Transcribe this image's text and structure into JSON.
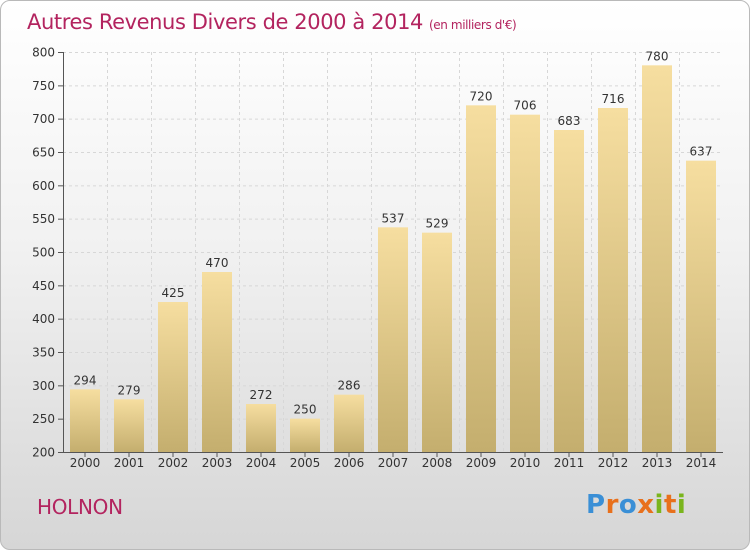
{
  "chart_data": {
    "type": "bar",
    "title": "Autres Revenus Divers de 2000 à 2014",
    "subtitle": "(en milliers d'€)",
    "categories": [
      "2000",
      "2001",
      "2002",
      "2003",
      "2004",
      "2005",
      "2006",
      "2007",
      "2008",
      "2009",
      "2010",
      "2011",
      "2012",
      "2013",
      "2014"
    ],
    "values": [
      294,
      279,
      425,
      470,
      272,
      250,
      286,
      537,
      529,
      720,
      706,
      683,
      716,
      780,
      637
    ],
    "data_labels": [
      "294",
      "279",
      "425",
      "470",
      "272",
      "250",
      "286",
      "537",
      "529",
      "720",
      "706",
      "683",
      "716",
      "780",
      "637"
    ],
    "ylim": [
      200,
      800
    ],
    "yticks": [
      200,
      250,
      300,
      350,
      400,
      450,
      500,
      550,
      600,
      650,
      700,
      750,
      800
    ],
    "ytick_labels": [
      "200",
      "250",
      "300",
      "350",
      "400",
      "450",
      "500",
      "550",
      "600",
      "650",
      "700",
      "750",
      "800"
    ],
    "xlabel": "",
    "ylabel": "",
    "grid": true,
    "colors": {
      "bar_top": "#f6dea0",
      "bar_bottom": "#c4ae6e",
      "title": "#b3245f"
    }
  },
  "footer": {
    "commune": "HOLNON",
    "brand": [
      "P",
      "r",
      "o",
      "x",
      "i",
      "t",
      "i"
    ],
    "brand_colors": [
      "#3a8fd6",
      "#e8701c",
      "#3a8fd6",
      "#e8701c",
      "#7ab51d",
      "#e8701c",
      "#7ab51d"
    ]
  }
}
